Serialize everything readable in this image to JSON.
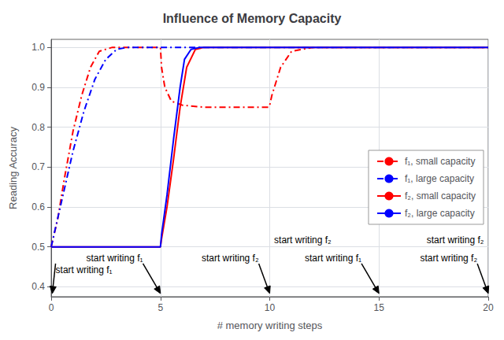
{
  "chart_data": {
    "type": "line",
    "title": "Influence of Memory Capacity",
    "xlabel": "# memory writing steps",
    "ylabel": "Reading Accuracy",
    "xlim": [
      0,
      20
    ],
    "ylim": [
      0.375,
      1.02
    ],
    "xticks": [
      0,
      5,
      10,
      15,
      20
    ],
    "yticks": [
      0.4,
      0.5,
      0.6,
      0.7,
      0.8,
      0.9,
      {
        "value": 1.0,
        "label": "1.0"
      }
    ],
    "grid": true,
    "legend": "lower right",
    "series": [
      {
        "name": "f₁, small capacity",
        "color": "red",
        "line_style": "dashdot",
        "x": [
          0,
          0.3,
          0.6,
          1.0,
          1.4,
          1.8,
          2.2,
          2.8,
          3.5,
          4.0,
          4.5,
          4.95,
          5.0,
          5.05,
          5.2,
          5.5,
          6.0,
          7.0,
          8.0,
          9.0,
          9.95,
          10.0,
          10.1,
          10.5,
          11.0,
          12.0,
          15.0,
          20.0
        ],
        "values": [
          0.5,
          0.57,
          0.67,
          0.79,
          0.88,
          0.95,
          0.99,
          1.0,
          1.0,
          1.0,
          1.0,
          1.0,
          1.0,
          0.95,
          0.9,
          0.865,
          0.855,
          0.85,
          0.85,
          0.85,
          0.85,
          0.855,
          0.88,
          0.95,
          0.99,
          1.0,
          1.0,
          1.0
        ]
      },
      {
        "name": "f₁, large capacity",
        "color": "blue",
        "line_style": "dashdot",
        "x": [
          0,
          0.5,
          1.0,
          1.5,
          2.0,
          2.5,
          3.0,
          3.5,
          3.8,
          4.0,
          4.5,
          5.0,
          5.5,
          6.0,
          6.5,
          7.0,
          20.0
        ],
        "values": [
          0.5,
          0.62,
          0.74,
          0.84,
          0.92,
          0.97,
          0.995,
          1.0,
          1.0,
          1.0,
          1.0,
          1.0,
          1.0,
          1.0,
          1.0,
          1.0,
          1.0
        ]
      },
      {
        "name": "f₂, small capacity",
        "color": "red",
        "line_style": "solid",
        "x": [
          0,
          4.95,
          5.0,
          5.05,
          5.3,
          5.6,
          5.9,
          6.2,
          6.6,
          7.0,
          20.0
        ],
        "values": [
          0.5,
          0.5,
          0.5,
          0.52,
          0.6,
          0.72,
          0.85,
          0.95,
          0.995,
          1.0,
          1.0
        ]
      },
      {
        "name": "f₂, large capacity",
        "color": "blue",
        "line_style": "solid",
        "x": [
          0,
          4.95,
          5.0,
          5.05,
          5.3,
          5.6,
          5.9,
          6.1,
          6.4,
          6.8,
          20.0
        ],
        "values": [
          0.5,
          0.5,
          0.5,
          0.53,
          0.63,
          0.77,
          0.9,
          0.97,
          0.995,
          1.0,
          1.0
        ]
      }
    ],
    "annotations": [
      {
        "text": "start writing f₁",
        "x": 0.2,
        "y": 0.458,
        "arrow_x": 0.05,
        "arrow_y": 0.383
      },
      {
        "text": "start writing f₁",
        "x": 4.2,
        "y": 0.458,
        "arrow_x": 5.0,
        "arrow_y": 0.383
      },
      {
        "text": "start writing f₂",
        "x": 9.5,
        "y": 0.458,
        "arrow_x": 10.0,
        "arrow_y": 0.383
      },
      {
        "text": "start writing f₁",
        "x": 14.2,
        "y": 0.458,
        "arrow_x": 15.0,
        "arrow_y": 0.383
      },
      {
        "text": "start writing f₂",
        "x": 19.5,
        "y": 0.458,
        "arrow_x": 20.0,
        "arrow_y": 0.383
      },
      {
        "text": "start writing f₂",
        "x": 10.2,
        "y": 0.503
      },
      {
        "text": "start writing f₂",
        "x": 19.8,
        "y": 0.503
      }
    ]
  }
}
